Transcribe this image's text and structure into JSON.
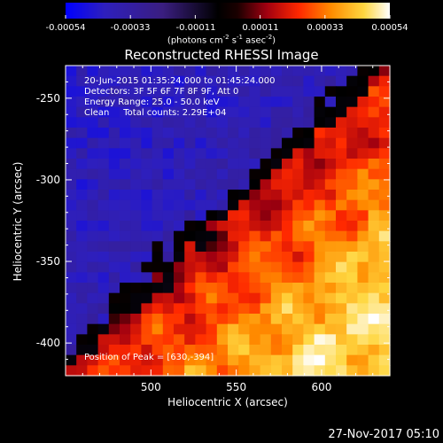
{
  "colorbar": {
    "ticks": [
      "-0.00054",
      "-0.00033",
      "-0.00011",
      "0.00011",
      "0.00033",
      "0.00054"
    ],
    "unit_parts": [
      "(photons cm",
      "-2",
      " s",
      "-1",
      " asec",
      "-2",
      ")"
    ]
  },
  "title": "Reconstructed RHESSI Image",
  "info": {
    "line1": "20-Jun-2015 01:35:24.000 to 01:45:24.000",
    "line2": "Detectors: 3F 5F 6F 7F 8F 9F, Att 0",
    "line3": "Energy Range: 25.0 - 50.0 keV",
    "line4": "Clean     Total counts: 2.29E+04"
  },
  "peak_label": "Position of Peak = [630,-394]",
  "footer": "27-Nov-2017 05:10",
  "chart_data": {
    "type": "heatmap",
    "title": "Reconstructed RHESSI Image",
    "xlabel": "Heliocentric X (arcsec)",
    "ylabel": "Heliocentric Y (arcsec)",
    "xlim": [
      450,
      640
    ],
    "ylim": [
      -420,
      -230
    ],
    "xticks": [
      500,
      550,
      600
    ],
    "yticks": [
      -250,
      -300,
      -350,
      -400
    ],
    "colorbar_range": [
      -0.00054,
      0.00054
    ],
    "colorscale": "blue-black-red-yellow-white",
    "structure": "negative (blue) region upper-left, positive (red-yellow-white) region lower-right, separated by a diagonal boundary",
    "peak_position": [
      630,
      -394
    ]
  }
}
